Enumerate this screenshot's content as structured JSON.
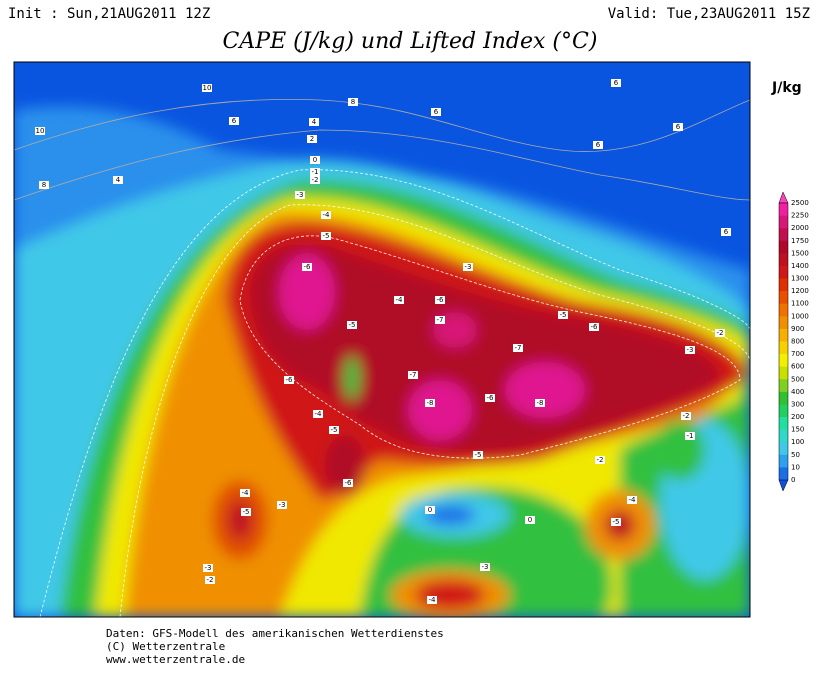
{
  "header": {
    "init": "Init : Sun,21AUG2011 12Z",
    "valid": "Valid: Tue,23AUG2011 15Z",
    "title": "CAPE (J/kg) und Lifted Index (°C)"
  },
  "legend": {
    "unit": "J/kg",
    "levels": [
      2500,
      2250,
      2000,
      1750,
      1500,
      1400,
      1300,
      1200,
      1100,
      1000,
      900,
      800,
      700,
      600,
      500,
      400,
      300,
      200,
      150,
      100,
      50,
      10,
      0
    ],
    "colors": [
      "#f020a0",
      "#d81878",
      "#c01050",
      "#b00828",
      "#c01020",
      "#d01818",
      "#e03000",
      "#e85000",
      "#f07000",
      "#f09000",
      "#f8b000",
      "#f8d000",
      "#f0f000",
      "#c8e000",
      "#80d020",
      "#30c030",
      "#20d060",
      "#20e0a0",
      "#30d8c8",
      "#40c8e8",
      "#2ea0f0",
      "#1a6ee8"
    ]
  },
  "map": {
    "contour_labels": [
      10,
      8,
      10,
      6,
      4,
      8,
      4,
      2,
      0,
      -1,
      -2,
      -3,
      -4,
      -5,
      -6,
      -4,
      -3,
      -6,
      -7,
      -7,
      -8,
      -8,
      -6,
      -5,
      -6,
      -7,
      -5,
      -5,
      -6,
      -4,
      -5,
      -6,
      -4,
      -5,
      -3,
      -3,
      -2,
      -2,
      -2,
      -1,
      -4,
      -5,
      -3,
      -4,
      0,
      0,
      6,
      6,
      6,
      6,
      6,
      -3,
      -2
    ]
  },
  "footer": {
    "lines": [
      "Daten: GFS-Modell des amerikanischen Wetterdienstes",
      "(C) Wetterzentrale",
      "www.wetterzentrale.de"
    ]
  }
}
